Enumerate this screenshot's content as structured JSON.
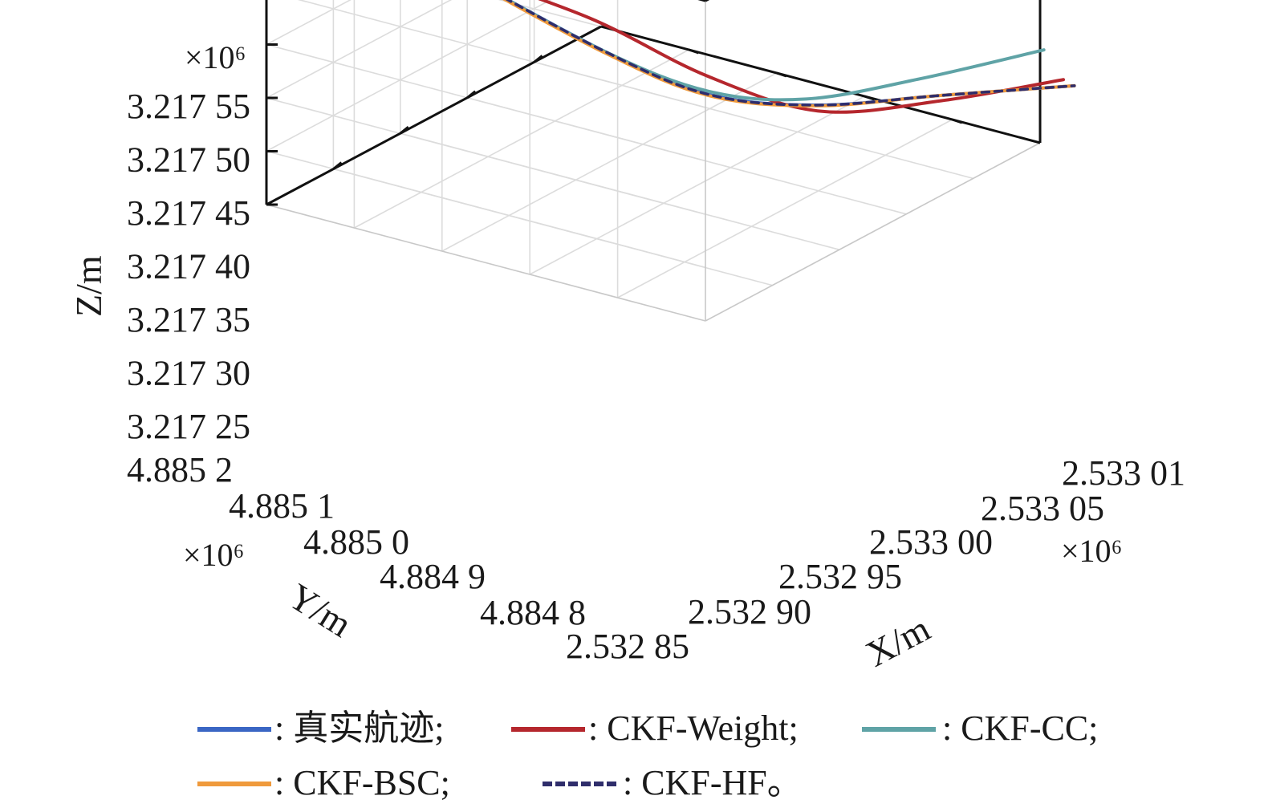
{
  "chart_data": {
    "type": "line",
    "dimensions": "3d",
    "x_axis": {
      "label": "X/m",
      "multiplier": "×10⁶",
      "ticks": [
        "2.532 85",
        "2.532 90",
        "2.532 95",
        "2.533 00",
        "2.533 05",
        "2.533 01"
      ]
    },
    "y_axis": {
      "label": "Y/m",
      "multiplier": "×10⁶",
      "ticks": [
        "4.885 2",
        "4.885 1",
        "4.885 0",
        "4.884 9",
        "4.884 8"
      ]
    },
    "z_axis": {
      "label": "Z/m",
      "multiplier": "×10⁶",
      "ticks": [
        "3.217 55",
        "3.217 50",
        "3.217 45",
        "3.217 40",
        "3.217 35",
        "3.217 30",
        "3.217 25"
      ]
    },
    "grid": true,
    "series": [
      {
        "name": ": 真实航迹;",
        "color": "#3a66c4",
        "style": "solid",
        "points": [
          [
            2.532863,
            4.88505,
            3.217505
          ],
          [
            2.532888,
            4.88494,
            3.21744
          ],
          [
            2.532918,
            4.88488,
            3.217395
          ],
          [
            2.532958,
            4.88483,
            3.217372
          ],
          [
            2.53301,
            4.88478,
            3.21736
          ],
          [
            2.53306,
            4.88472,
            3.217352
          ]
        ]
      },
      {
        "name": ": CKF-Weight;",
        "color": "#b5272d",
        "style": "solid",
        "points": [
          [
            2.532863,
            4.88505,
            3.217505
          ],
          [
            2.532895,
            4.88496,
            3.21746
          ],
          [
            2.532925,
            4.88489,
            3.217405
          ],
          [
            2.53296,
            4.88483,
            3.217365
          ],
          [
            2.53301,
            4.88478,
            3.217355
          ],
          [
            2.53306,
            4.88473,
            3.217355
          ]
        ]
      },
      {
        "name": ": CKF-CC;",
        "color": "#5fa3a6",
        "style": "solid",
        "points": [
          [
            2.532863,
            4.88505,
            3.217505
          ],
          [
            2.532888,
            4.88494,
            3.21744
          ],
          [
            2.532918,
            4.88488,
            3.217398
          ],
          [
            2.532958,
            4.88484,
            3.217375
          ],
          [
            2.53301,
            4.8848,
            3.21737
          ],
          [
            2.53307,
            4.88476,
            3.217368
          ]
        ]
      },
      {
        "name": ": CKF-BSC;",
        "color": "#ef9a3c",
        "style": "solid",
        "points": [
          [
            2.532862,
            4.88505,
            3.217505
          ],
          [
            2.532887,
            4.88494,
            3.21744
          ],
          [
            2.532917,
            4.88488,
            3.217395
          ],
          [
            2.532957,
            4.88483,
            3.217372
          ],
          [
            2.53301,
            4.88478,
            3.21736
          ],
          [
            2.53306,
            4.88472,
            3.217352
          ]
        ]
      },
      {
        "name": ": CKF-HF。",
        "color": "#2f2d6b",
        "style": "dashed",
        "points": [
          [
            2.532863,
            4.88505,
            3.217505
          ],
          [
            2.532888,
            4.88494,
            3.21744
          ],
          [
            2.532918,
            4.88488,
            3.217395
          ],
          [
            2.532958,
            4.88483,
            3.217372
          ],
          [
            2.53301,
            4.88478,
            3.21736
          ],
          [
            2.53306,
            4.88472,
            3.217352
          ]
        ]
      }
    ]
  }
}
